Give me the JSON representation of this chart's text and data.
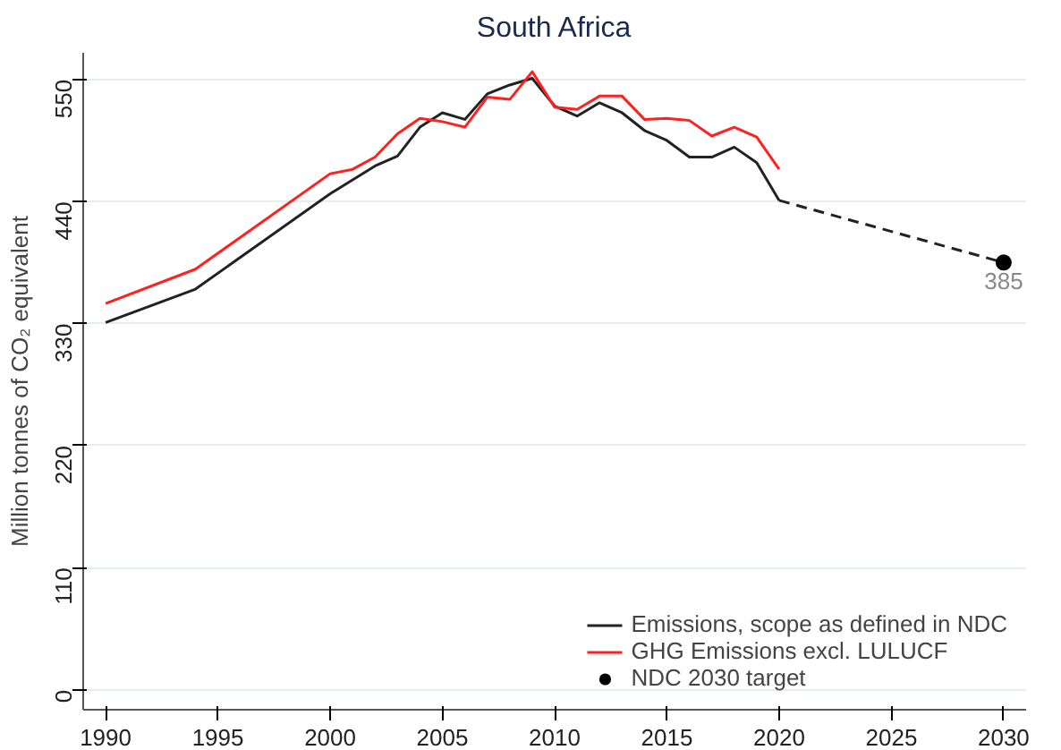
{
  "chart_data": {
    "type": "line",
    "title": "South Africa",
    "ylabel": "Million tonnes of CO₂ equivalent",
    "xlim": [
      1989,
      2031
    ],
    "xticks": [
      1990,
      1995,
      2000,
      2005,
      2010,
      2015,
      2020,
      2025,
      2030
    ],
    "ylim": [
      -18,
      574
    ],
    "yticks": [
      0,
      110,
      220,
      330,
      440,
      550
    ],
    "grid": "y",
    "legend": "bottom right",
    "series": [
      {
        "name": "Emissions, scope as defined in NDC",
        "color": "#222222",
        "x": [
          1990,
          1994,
          2000,
          2002,
          2003,
          2004,
          2005,
          2006,
          2007,
          2008,
          2009,
          2010,
          2011,
          2012,
          2013,
          2014,
          2015,
          2016,
          2017,
          2018,
          2019,
          2020
        ],
        "values": [
          331,
          361,
          447,
          472,
          481,
          507,
          520,
          514,
          537,
          545,
          551,
          526,
          517,
          529,
          520,
          504,
          495,
          480,
          480,
          489,
          475,
          441
        ]
      },
      {
        "name": "GHG Emissions excl. LULUCF",
        "color": "#ff2020",
        "x": [
          1990,
          1994,
          2000,
          2001,
          2002,
          2003,
          2004,
          2005,
          2006,
          2007,
          2008,
          2009,
          2010,
          2011,
          2012,
          2013,
          2014,
          2015,
          2016,
          2017,
          2018,
          2019,
          2020
        ],
        "values": [
          348,
          379,
          465,
          469,
          480,
          501,
          515,
          512,
          507,
          534,
          532,
          557,
          525,
          523,
          535,
          535,
          514,
          515,
          513,
          499,
          507,
          498,
          469
        ]
      },
      {
        "type": "line",
        "line_style": "dashed",
        "color": "#222222",
        "x": [
          2020,
          2030
        ],
        "values": [
          441,
          385
        ]
      },
      {
        "type": "scatter",
        "name": "NDC 2030 target",
        "color": "#000000",
        "marker": "circle",
        "x": [
          2030
        ],
        "values": [
          385
        ],
        "value_labels": [
          "385"
        ]
      }
    ]
  }
}
